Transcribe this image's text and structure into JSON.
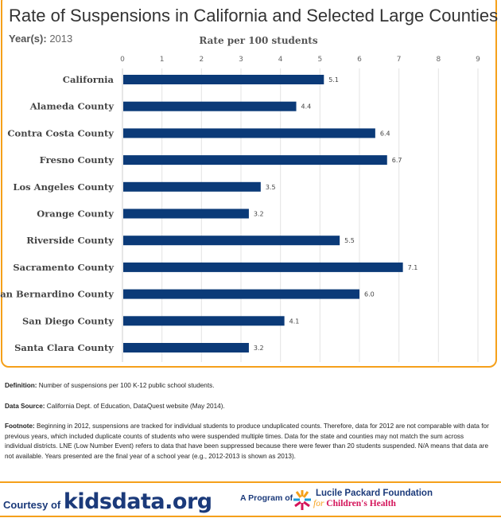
{
  "title": "Rate of Suspensions in California and Selected Large Counties",
  "year_label": "Year(s):",
  "year_value": "2013",
  "chart_data": {
    "type": "bar",
    "orientation": "horizontal",
    "xlabel": "Rate per 100 students",
    "xlim": [
      0,
      9
    ],
    "ticks": [
      "0",
      "1",
      "2",
      "3",
      "4",
      "5",
      "6",
      "7",
      "8",
      "9"
    ],
    "grid": true,
    "categories": [
      "California",
      "Alameda County",
      "Contra Costa County",
      "Fresno County",
      "Los Angeles County",
      "Orange County",
      "Riverside County",
      "Sacramento County",
      "San Bernardino County",
      "San Diego County",
      "Santa Clara County"
    ],
    "values": [
      5.1,
      4.4,
      6.4,
      6.7,
      3.5,
      3.2,
      5.5,
      7.1,
      6.0,
      4.1,
      3.2
    ],
    "labels": [
      "5.1",
      "4.4",
      "6.4",
      "6.7",
      "3.5",
      "3.2",
      "5.5",
      "7.1",
      "6.0",
      "4.1",
      "3.2"
    ],
    "bar_color": "#0b3a78"
  },
  "definition_label": "Definition:",
  "definition": "Number of suspensions per 100 K-12 public school students.",
  "source_label": "Data Source:",
  "source": "California Dept. of Education, DataQuest website (May 2014).",
  "footnote_label": "Footnote:",
  "footnote": "Beginning in 2012, suspensions are tracked for individual students to produce unduplicated counts. Therefore, data for 2012 are not comparable with data for previous years, which included duplicate counts of students who were suspended multiple times. Data for the state and counties may not match the sum across individual districts. LNE (Low Number Event) refers to data that have been suppressed because there were fewer than 20 students suspended. N/A means that data are not available. Years presented are the final year of a school year (e.g., 2012-2013 is shown as 2013).",
  "footer": {
    "courtesy": "Courtesy of",
    "site": "kidsdata.org",
    "program": "A Program of",
    "foundation_line1": "Lucile Packard Foundation",
    "foundation_for": "for",
    "foundation_line2": "Children's Health"
  },
  "accent_color": "#f5a01a"
}
